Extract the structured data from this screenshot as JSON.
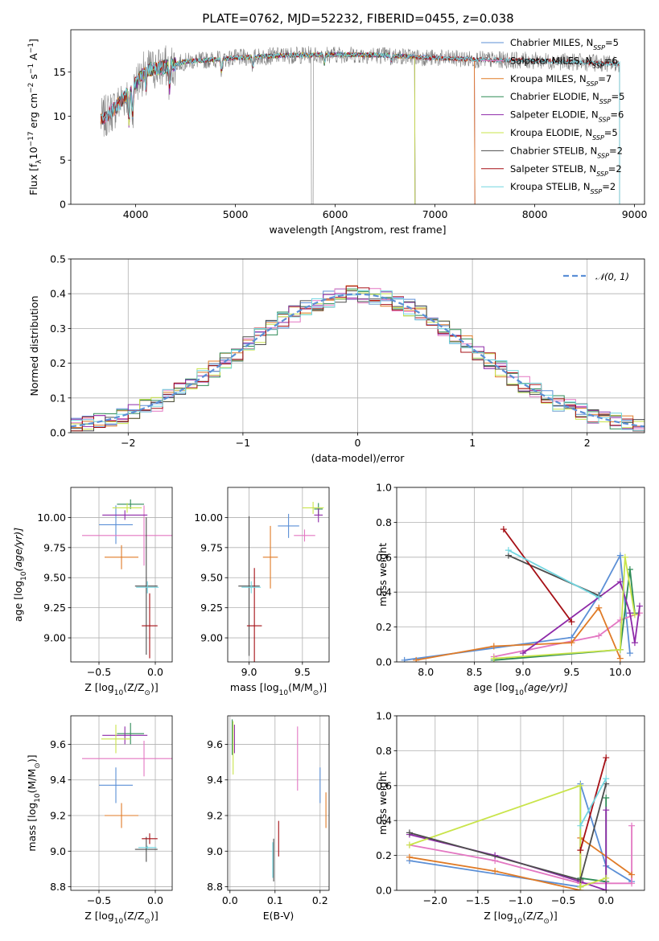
{
  "figure_title": "PLATE=0762, MJD=52232, FIBERID=0455, z=0.038",
  "colors": {
    "chabrier_miles": "#5b8fd6",
    "salpeter_miles": "#e377c2",
    "kroupa_miles": "#e07b27",
    "chabrier_elodie": "#2e8b57",
    "salpeter_elodie": "#8e2aa8",
    "kroupa_elodie": "#c9e44a",
    "chabrier_stelib": "#4d4d4d",
    "salpeter_stelib": "#a50f15",
    "kroupa_stelib": "#72d6e0",
    "data": "#808080",
    "normal": "#5b8fd6"
  },
  "chart_data": [
    {
      "id": "spectrum",
      "type": "line",
      "xlabel": "wavelength [Angstrom, rest frame]",
      "ylabel": "Flux [f_λ 10^-17 erg cm^-2 s^-1 A^-1]",
      "xlim": [
        3350,
        9100
      ],
      "ylim": [
        0,
        19.8
      ],
      "xticks": [
        4000,
        5000,
        6000,
        7000,
        8000,
        9000
      ],
      "yticks": [
        0,
        5,
        10,
        15
      ],
      "grid": false,
      "legend_position": "right",
      "series": [
        {
          "name": "Chabrier MILES, N_SSP=5",
          "key": "chabrier_miles",
          "x_range": [
            3650,
            7400
          ]
        },
        {
          "name": "Salpeter MILES, N_SSP=6",
          "key": "salpeter_miles",
          "x_range": [
            3650,
            7400
          ]
        },
        {
          "name": "Kroupa MILES, N_SSP=7",
          "key": "kroupa_miles",
          "x_range": [
            3650,
            7400
          ]
        },
        {
          "name": "Chabrier ELODIE, N_SSP=5",
          "key": "chabrier_elodie",
          "x_range": [
            3900,
            6800
          ]
        },
        {
          "name": "Salpeter ELODIE, N_SSP=6",
          "key": "salpeter_elodie",
          "x_range": [
            3900,
            6800
          ]
        },
        {
          "name": "Kroupa ELODIE, N_SSP=5",
          "key": "kroupa_elodie",
          "x_range": [
            3900,
            6800
          ]
        },
        {
          "name": "Chabrier STELIB, N_SSP=2",
          "key": "chabrier_stelib",
          "x_range": [
            3650,
            8850
          ]
        },
        {
          "name": "Salpeter STELIB, N_SSP=2",
          "key": "salpeter_stelib",
          "x_range": [
            3650,
            8850
          ]
        },
        {
          "name": "Kroupa STELIB, N_SSP=2",
          "key": "kroupa_stelib",
          "x_range": [
            3650,
            8850
          ]
        }
      ],
      "continuum_x": [
        3650,
        3800,
        3950,
        4100,
        4300,
        4500,
        5000,
        5500,
        6000,
        6500,
        7000,
        7500,
        8000,
        8500,
        8850
      ],
      "continuum_y": [
        9.5,
        11.0,
        13.0,
        15.2,
        15.6,
        16.2,
        16.6,
        16.9,
        17.0,
        16.9,
        16.6,
        16.4,
        16.3,
        16.1,
        15.9
      ]
    },
    {
      "id": "residuals",
      "type": "line",
      "xlabel": "(data-model)/error",
      "ylabel": "Normed distribution",
      "xlim": [
        -2.5,
        2.5
      ],
      "ylim": [
        0,
        0.5
      ],
      "xticks": [
        -2,
        -1,
        0,
        1,
        2
      ],
      "yticks": [
        0.0,
        0.1,
        0.2,
        0.3,
        0.4,
        0.5
      ],
      "grid": true,
      "legend_position": "top-right",
      "legend": "N(0,1)",
      "bin_width": 0.1
    },
    {
      "id": "age_vs_Z",
      "type": "scatter",
      "xlabel": "Z [log10(Z/Z⊙)]",
      "ylabel": "age [log10(age/yr)]",
      "xlim": [
        -0.75,
        0.15
      ],
      "ylim": [
        8.8,
        10.25
      ],
      "xticks": [
        -0.5,
        0.0
      ],
      "yticks": [
        9.0,
        9.25,
        9.5,
        9.75,
        10.0
      ],
      "grid": true,
      "points": [
        {
          "key": "chabrier_miles",
          "x": -0.35,
          "y": 9.94,
          "xerr": 0.15,
          "yerr": 0.16
        },
        {
          "key": "salpeter_miles",
          "x": -0.1,
          "y": 9.85,
          "xerr": 0.55,
          "yerr": 0.25
        },
        {
          "key": "kroupa_miles",
          "x": -0.3,
          "y": 9.67,
          "xerr": 0.15,
          "yerr": 0.1
        },
        {
          "key": "chabrier_elodie",
          "x": -0.22,
          "y": 10.11,
          "xerr": 0.12,
          "yerr": 0.04
        },
        {
          "key": "salpeter_elodie",
          "x": -0.27,
          "y": 10.02,
          "xerr": 0.2,
          "yerr": 0.04
        },
        {
          "key": "kroupa_elodie",
          "x": -0.25,
          "y": 10.08,
          "xerr": 0.13,
          "yerr": 0.04
        },
        {
          "key": "chabrier_stelib",
          "x": -0.08,
          "y": 9.43,
          "xerr": 0.1,
          "yerr": 0.57
        },
        {
          "key": "salpeter_stelib",
          "x": -0.05,
          "y": 9.1,
          "xerr": 0.07,
          "yerr": 0.27
        },
        {
          "key": "kroupa_stelib",
          "x": -0.07,
          "y": 9.42,
          "xerr": 0.1,
          "yerr": 0.05
        }
      ]
    },
    {
      "id": "age_vs_mass",
      "type": "scatter",
      "xlabel": "mass [log10(M/M⊙)]",
      "ylabel": "",
      "xlim": [
        8.8,
        9.75
      ],
      "ylim": [
        8.8,
        10.25
      ],
      "xticks": [
        9.0,
        9.5
      ],
      "yticks": [
        9.0,
        9.25,
        9.5,
        9.75,
        10.0
      ],
      "grid": true,
      "points": [
        {
          "key": "chabrier_miles",
          "x": 9.37,
          "y": 9.93,
          "xerr": 0.1,
          "yerr": 0.1
        },
        {
          "key": "salpeter_miles",
          "x": 9.52,
          "y": 9.85,
          "xerr": 0.1,
          "yerr": 0.05
        },
        {
          "key": "kroupa_miles",
          "x": 9.2,
          "y": 9.67,
          "xerr": 0.07,
          "yerr": 0.26
        },
        {
          "key": "chabrier_elodie",
          "x": 9.65,
          "y": 10.07,
          "xerr": 0.04,
          "yerr": 0.05
        },
        {
          "key": "salpeter_elodie",
          "x": 9.65,
          "y": 10.02,
          "xerr": 0.04,
          "yerr": 0.06
        },
        {
          "key": "kroupa_elodie",
          "x": 9.6,
          "y": 10.08,
          "xerr": 0.1,
          "yerr": 0.05
        },
        {
          "key": "chabrier_stelib",
          "x": 9.0,
          "y": 9.43,
          "xerr": 0.1,
          "yerr": 0.58
        },
        {
          "key": "salpeter_stelib",
          "x": 9.05,
          "y": 9.1,
          "xerr": 0.07,
          "yerr": 0.48
        },
        {
          "key": "kroupa_stelib",
          "x": 9.02,
          "y": 9.42,
          "xerr": 0.09,
          "yerr": 0.05
        }
      ]
    },
    {
      "id": "mass_weight_vs_age",
      "type": "line",
      "xlabel": "age [log10(age/yr)]",
      "ylabel": "mass weight",
      "xlim": [
        7.7,
        10.25
      ],
      "ylim": [
        0,
        1.0
      ],
      "xticks": [
        8.0,
        8.5,
        9.0,
        9.5,
        10.0
      ],
      "yticks": [
        0.0,
        0.2,
        0.4,
        0.6,
        0.8,
        1.0
      ],
      "grid": true,
      "series": [
        {
          "key": "chabrier_miles",
          "x": [
            7.78,
            9.5,
            9.78,
            10.0,
            10.1
          ],
          "y": [
            0.01,
            0.14,
            0.38,
            0.61,
            0.05
          ]
        },
        {
          "key": "salpeter_miles",
          "x": [
            8.7,
            9.78,
            10.0,
            10.2
          ],
          "y": [
            0.03,
            0.15,
            0.24,
            0.28
          ]
        },
        {
          "key": "kroupa_miles",
          "x": [
            7.9,
            8.7,
            9.5,
            9.78,
            10.0
          ],
          "y": [
            0.01,
            0.09,
            0.11,
            0.31,
            0.02
          ]
        },
        {
          "key": "chabrier_elodie",
          "x": [
            8.7,
            10.0,
            10.1,
            10.15
          ],
          "y": [
            0.01,
            0.07,
            0.53,
            0.28
          ]
        },
        {
          "key": "salpeter_elodie",
          "x": [
            9.0,
            10.0,
            10.1,
            10.15,
            10.2
          ],
          "y": [
            0.05,
            0.46,
            0.28,
            0.11,
            0.32
          ]
        },
        {
          "key": "kroupa_elodie",
          "x": [
            8.7,
            10.0,
            10.05,
            10.15
          ],
          "y": [
            0.02,
            0.07,
            0.6,
            0.27
          ]
        },
        {
          "key": "chabrier_stelib",
          "x": [
            8.85,
            9.78
          ],
          "y": [
            0.61,
            0.38
          ]
        },
        {
          "key": "salpeter_stelib",
          "x": [
            8.8,
            9.5
          ],
          "y": [
            0.76,
            0.23
          ]
        },
        {
          "key": "kroupa_stelib",
          "x": [
            8.85,
            9.78
          ],
          "y": [
            0.64,
            0.37
          ]
        }
      ]
    },
    {
      "id": "mass_vs_Z",
      "type": "scatter",
      "xlabel": "Z [log10(Z/Z⊙)]",
      "ylabel": "mass [log10(M/M⊙)]",
      "xlim": [
        -0.75,
        0.15
      ],
      "ylim": [
        8.78,
        9.76
      ],
      "xticks": [
        -0.5,
        0.0
      ],
      "yticks": [
        8.8,
        9.0,
        9.2,
        9.4,
        9.6
      ],
      "grid": true,
      "points": [
        {
          "key": "chabrier_miles",
          "x": -0.35,
          "y": 9.37,
          "xerr": 0.15,
          "yerr": 0.1
        },
        {
          "key": "salpeter_miles",
          "x": -0.1,
          "y": 9.52,
          "xerr": 0.55,
          "yerr": 0.1
        },
        {
          "key": "kroupa_miles",
          "x": -0.3,
          "y": 9.2,
          "xerr": 0.15,
          "yerr": 0.07
        },
        {
          "key": "chabrier_elodie",
          "x": -0.22,
          "y": 9.66,
          "xerr": 0.12,
          "yerr": 0.06
        },
        {
          "key": "salpeter_elodie",
          "x": -0.27,
          "y": 9.65,
          "xerr": 0.2,
          "yerr": 0.05
        },
        {
          "key": "kroupa_elodie",
          "x": -0.35,
          "y": 9.63,
          "xerr": 0.13,
          "yerr": 0.08
        },
        {
          "key": "chabrier_stelib",
          "x": -0.08,
          "y": 9.01,
          "xerr": 0.1,
          "yerr": 0.07
        },
        {
          "key": "salpeter_stelib",
          "x": -0.05,
          "y": 9.07,
          "xerr": 0.07,
          "yerr": 0.03
        },
        {
          "key": "kroupa_stelib",
          "x": -0.07,
          "y": 9.02,
          "xerr": 0.08,
          "yerr": 0.01
        }
      ]
    },
    {
      "id": "mass_vs_ebv",
      "type": "scatter",
      "xlabel": "E(B-V)",
      "ylabel": "",
      "xlim": [
        -0.005,
        0.22
      ],
      "ylim": [
        8.78,
        9.76
      ],
      "xticks": [
        0.0,
        0.1,
        0.2
      ],
      "yticks": [
        8.8,
        9.0,
        9.2,
        9.4,
        9.6
      ],
      "grid": true,
      "points": [
        {
          "key": "chabrier_miles",
          "x": 0.2,
          "y": 9.37,
          "xerr": 0.0,
          "yerr": 0.1
        },
        {
          "key": "salpeter_miles",
          "x": 0.15,
          "y": 9.52,
          "xerr": 0.0,
          "yerr": 0.18
        },
        {
          "key": "kroupa_miles",
          "x": 0.213,
          "y": 9.23,
          "xerr": 0.0,
          "yerr": 0.1
        },
        {
          "key": "chabrier_elodie",
          "x": 0.005,
          "y": 9.64,
          "xerr": 0.0,
          "yerr": 0.1
        },
        {
          "key": "salpeter_elodie",
          "x": 0.01,
          "y": 9.63,
          "xerr": 0.0,
          "yerr": 0.08
        },
        {
          "key": "kroupa_elodie",
          "x": 0.007,
          "y": 9.58,
          "xerr": 0.0,
          "yerr": 0.15
        },
        {
          "key": "chabrier_stelib",
          "x": 0.097,
          "y": 8.95,
          "xerr": 0.0,
          "yerr": 0.12
        },
        {
          "key": "salpeter_stelib",
          "x": 0.108,
          "y": 9.07,
          "xerr": 0.0,
          "yerr": 0.1
        },
        {
          "key": "kroupa_stelib",
          "x": 0.095,
          "y": 8.95,
          "xerr": 0.0,
          "yerr": 0.1
        }
      ]
    },
    {
      "id": "mass_weight_vs_Z",
      "type": "line",
      "xlabel": "Z [log10(Z/Z⊙)]",
      "ylabel": "mass weight",
      "xlim": [
        -2.45,
        0.45
      ],
      "ylim": [
        0,
        1.0
      ],
      "xticks": [
        -2.0,
        -1.5,
        -1.0,
        -0.5,
        0.0
      ],
      "yticks": [
        0.0,
        0.2,
        0.4,
        0.6,
        0.8,
        1.0
      ],
      "grid": true,
      "series": [
        {
          "key": "chabrier_miles",
          "x": [
            -2.3,
            -0.3,
            -0.3,
            0.0,
            0.3
          ],
          "y": [
            0.17,
            0.02,
            0.61,
            0.14,
            0.05
          ]
        },
        {
          "key": "salpeter_miles",
          "x": [
            -2.3,
            -1.3,
            -0.3,
            0.3,
            0.3
          ],
          "y": [
            0.26,
            0.17,
            0.04,
            0.04,
            0.37
          ]
        },
        {
          "key": "kroupa_miles",
          "x": [
            -2.3,
            -1.3,
            -0.3,
            -0.3,
            0.3
          ],
          "y": [
            0.19,
            0.11,
            0.0,
            0.3,
            0.09
          ]
        },
        {
          "key": "chabrier_elodie",
          "x": [
            -0.3,
            -0.3,
            0.0,
            0.0
          ],
          "y": [
            0.02,
            0.07,
            0.05,
            0.53
          ]
        },
        {
          "key": "salpeter_elodie",
          "x": [
            -2.3,
            -1.3,
            -0.3,
            0.0,
            0.0
          ],
          "y": [
            0.32,
            0.2,
            0.05,
            0.0,
            0.46
          ]
        },
        {
          "key": "kroupa_elodie",
          "x": [
            -2.3,
            -0.3,
            -0.3,
            0.0
          ],
          "y": [
            0.26,
            0.6,
            0.02,
            0.07
          ]
        },
        {
          "key": "chabrier_stelib",
          "x": [
            -2.3,
            -0.3,
            0.0
          ],
          "y": [
            0.33,
            0.06,
            0.61
          ]
        },
        {
          "key": "salpeter_stelib",
          "x": [
            -0.3,
            0.0
          ],
          "y": [
            0.23,
            0.76
          ]
        },
        {
          "key": "kroupa_stelib",
          "x": [
            -0.3,
            0.0
          ],
          "y": [
            0.37,
            0.64
          ]
        }
      ]
    }
  ]
}
